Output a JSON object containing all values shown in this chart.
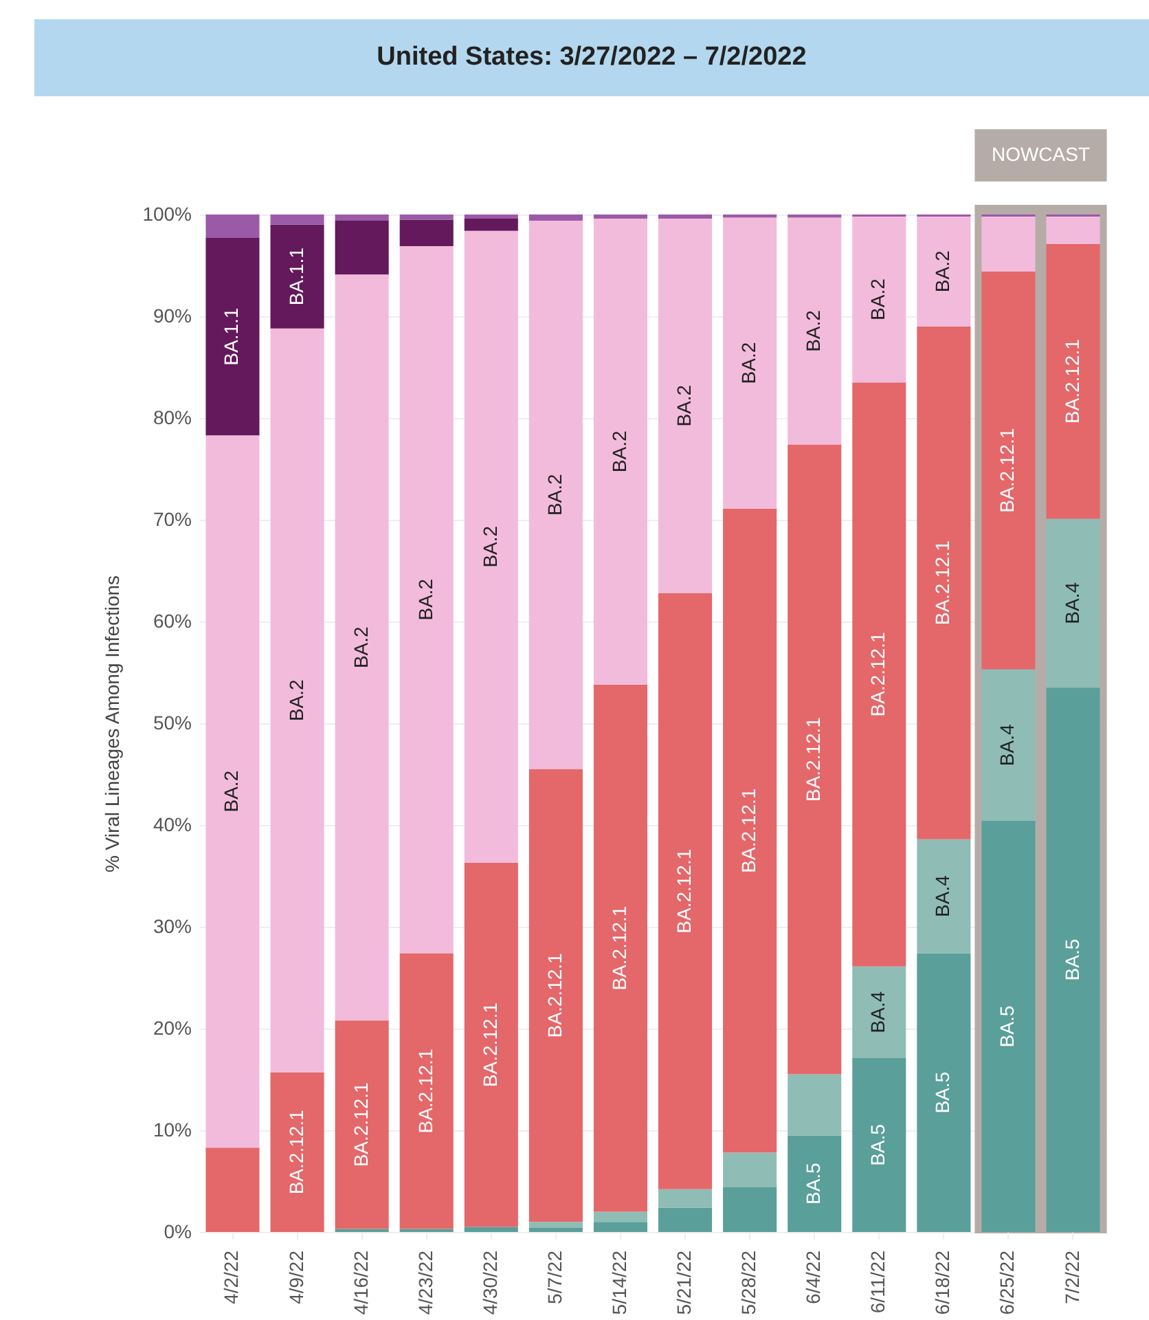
{
  "chart_data": {
    "type": "bar",
    "title": "United States: 3/27/2022 – 7/2/2022",
    "ylabel": "% Viral Lineages Among Infections",
    "stacked": true,
    "grid": "y",
    "categories": [
      "4/2/22",
      "4/9/22",
      "4/16/22",
      "4/23/22",
      "4/30/22",
      "5/7/22",
      "5/14/22",
      "5/21/22",
      "5/28/22",
      "6/4/22",
      "6/11/22",
      "6/18/22",
      "6/25/22",
      "7/2/22"
    ],
    "ylim": [
      0,
      100
    ],
    "yticks": [
      {
        "value": 0,
        "label": "0%"
      },
      {
        "value": 10,
        "label": "10%"
      },
      {
        "value": 20,
        "label": "20%"
      },
      {
        "value": 30,
        "label": "30%"
      },
      {
        "value": 40,
        "label": "40%"
      },
      {
        "value": 50,
        "label": "50%"
      },
      {
        "value": 60,
        "label": "60%"
      },
      {
        "value": 70,
        "label": "70%"
      },
      {
        "value": 80,
        "label": "80%"
      },
      {
        "value": 90,
        "label": "90%"
      },
      {
        "value": 100,
        "label": "100%"
      }
    ],
    "series": [
      {
        "name": "BA.5",
        "color": "#5a9f99",
        "values": [
          0,
          0,
          0.3,
          0.3,
          0.5,
          0.4,
          1.0,
          2.4,
          4.4,
          9.5,
          17.1,
          27.4,
          40.4,
          53.5
        ]
      },
      {
        "name": "BA.4",
        "color": "#8fbdb6",
        "values": [
          0,
          0,
          0,
          0,
          0,
          0.6,
          1.0,
          1.8,
          3.4,
          6.0,
          9.0,
          11.2,
          14.9,
          16.6
        ]
      },
      {
        "name": "BA.2.12.1",
        "color": "#e4676a",
        "values": [
          8.3,
          15.7,
          20.5,
          27.1,
          35.8,
          44.5,
          51.8,
          58.6,
          63.3,
          61.9,
          57.4,
          50.4,
          39.1,
          27.0
        ]
      },
      {
        "name": "BA.2",
        "color": "#f2bbdc",
        "values": [
          70.0,
          73.1,
          73.3,
          69.5,
          62.1,
          53.9,
          45.8,
          36.8,
          28.6,
          22.3,
          16.3,
          10.8,
          5.4,
          2.7
        ]
      },
      {
        "name": "BA.1.1",
        "color": "#63195b",
        "values": [
          19.4,
          10.2,
          5.3,
          2.6,
          1.2,
          0,
          0,
          0,
          0,
          0,
          0,
          0,
          0,
          0
        ]
      },
      {
        "color": "#9b5aa8",
        "values": [
          2.3,
          1.0,
          0.6,
          0.5,
          0.4,
          0.6,
          0.4,
          0.4,
          0.3,
          0.3,
          0.2,
          0.2,
          0.2,
          0.2
        ]
      }
    ],
    "bands": [
      {
        "axis": "x",
        "from": "6/25/22",
        "to": "7/2/22",
        "label": "NOWCAST",
        "color": "#b6aca7"
      }
    ]
  }
}
